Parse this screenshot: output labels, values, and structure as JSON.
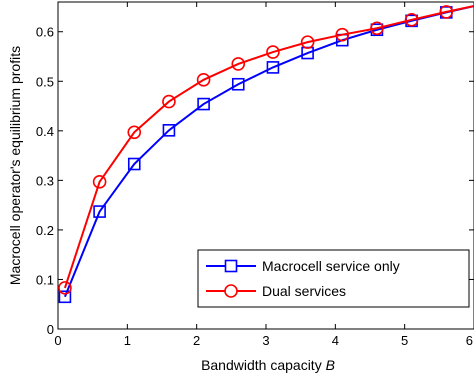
{
  "chart_data": {
    "type": "line",
    "xlabel": "Bandwidth capacity",
    "xlabel_var": "B",
    "ylabel": "Macrocell operator's equilibrium profits",
    "xlim": [
      0,
      6
    ],
    "ylim": [
      0,
      0.66
    ],
    "xticks": [
      0,
      1,
      2,
      3,
      4,
      5,
      6
    ],
    "yticks": [
      0,
      0.1,
      0.2,
      0.3,
      0.4,
      0.5,
      0.6
    ],
    "grid": false,
    "legend_position": "lower-right",
    "x": [
      0.1,
      0.6,
      1.1,
      1.6,
      2.1,
      2.6,
      3.1,
      3.6,
      4.1,
      4.6,
      5.1,
      5.6,
      6.1
    ],
    "series": [
      {
        "name": "Macrocell service only",
        "color": "#0000ff",
        "marker": "square",
        "values": [
          0.065,
          0.237,
          0.333,
          0.401,
          0.454,
          0.494,
          0.528,
          0.557,
          0.583,
          0.604,
          0.622,
          0.639,
          0.655
        ]
      },
      {
        "name": "Dual services",
        "color": "#ff0000",
        "marker": "circle",
        "values": [
          0.083,
          0.297,
          0.397,
          0.459,
          0.503,
          0.535,
          0.559,
          0.579,
          0.594,
          0.607,
          0.624,
          0.64,
          0.655
        ]
      }
    ]
  }
}
